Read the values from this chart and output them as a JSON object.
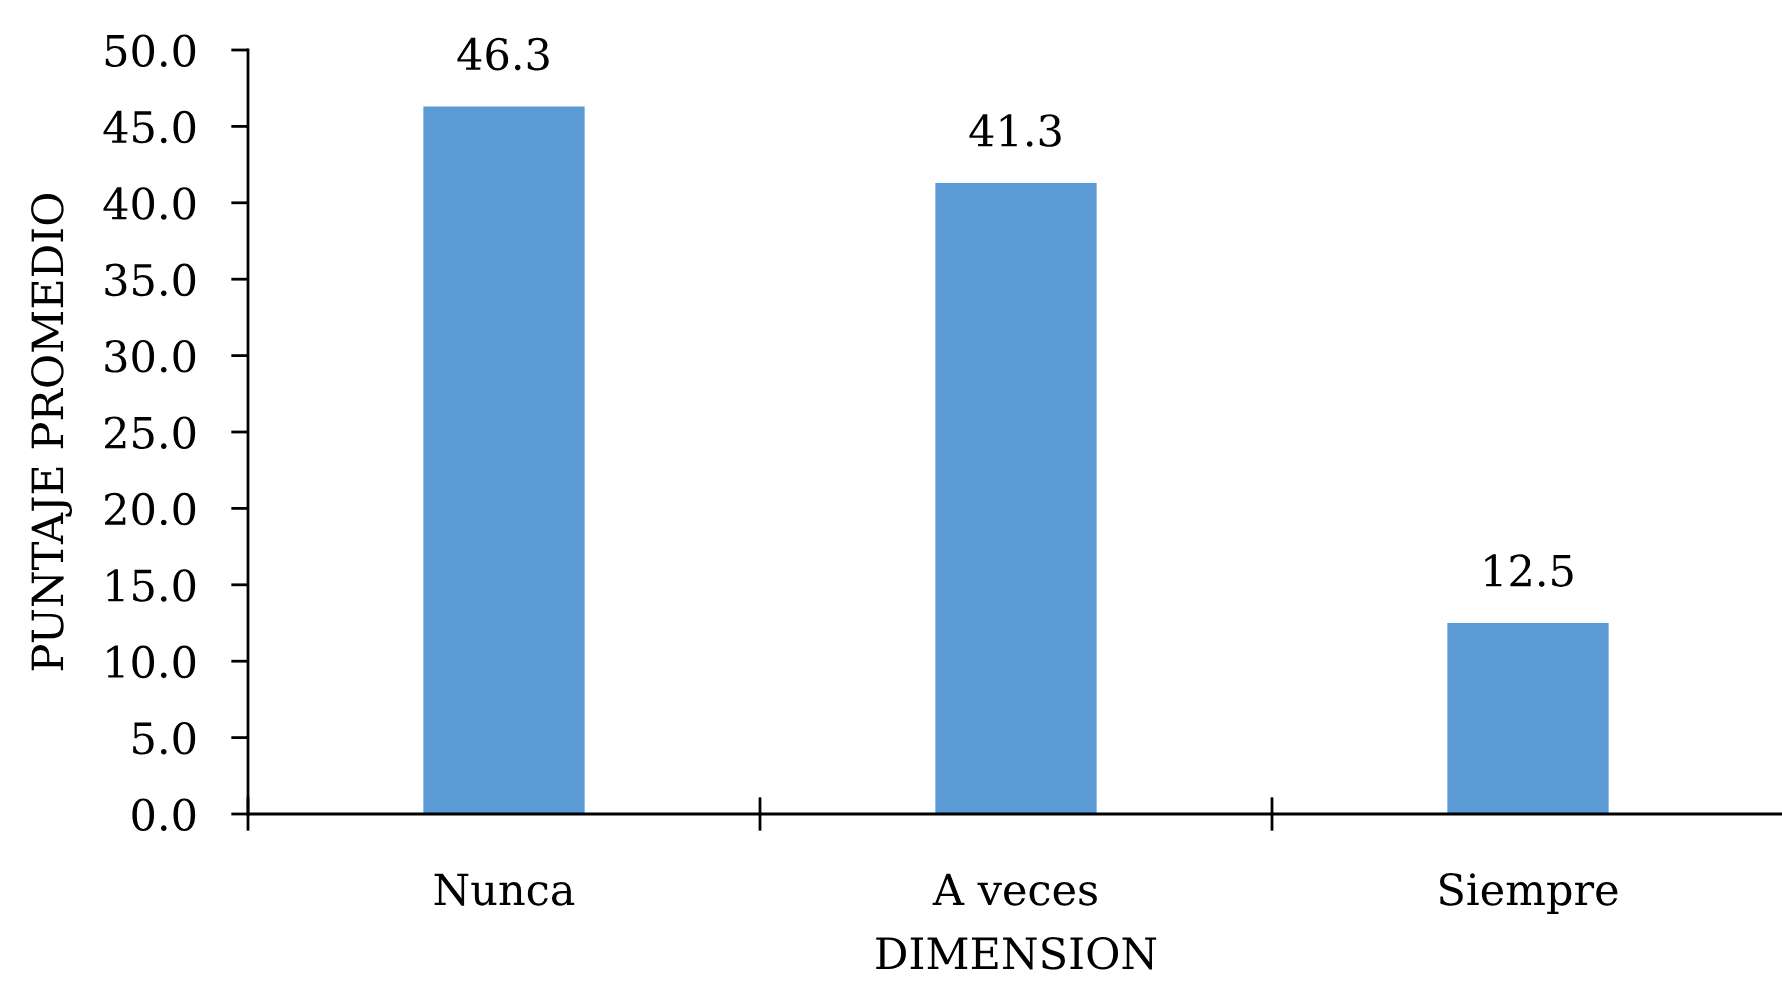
{
  "chart_data": {
    "type": "bar",
    "xlabel": "DIMENSION",
    "ylabel": "PUNTAJE PROMEDIO",
    "categories": [
      "Nunca",
      "A veces",
      "Siempre"
    ],
    "values": [
      46.3,
      41.3,
      12.5
    ],
    "color": "#5b9bd5",
    "ylim": [
      0,
      50
    ],
    "yticks": [
      {
        "value": 0,
        "label": "0.0"
      },
      {
        "value": 5,
        "label": "5.0"
      },
      {
        "value": 10,
        "label": "10.0"
      },
      {
        "value": 15,
        "label": "15.0"
      },
      {
        "value": 20,
        "label": "20.0"
      },
      {
        "value": 25,
        "label": "25.0"
      },
      {
        "value": 30,
        "label": "30.0"
      },
      {
        "value": 35,
        "label": "35.0"
      },
      {
        "value": 40,
        "label": "40.0"
      },
      {
        "value": 45,
        "label": "45.0"
      },
      {
        "value": 50,
        "label": "50.0"
      }
    ],
    "data_labels": true,
    "grid": false,
    "legend": false
  }
}
